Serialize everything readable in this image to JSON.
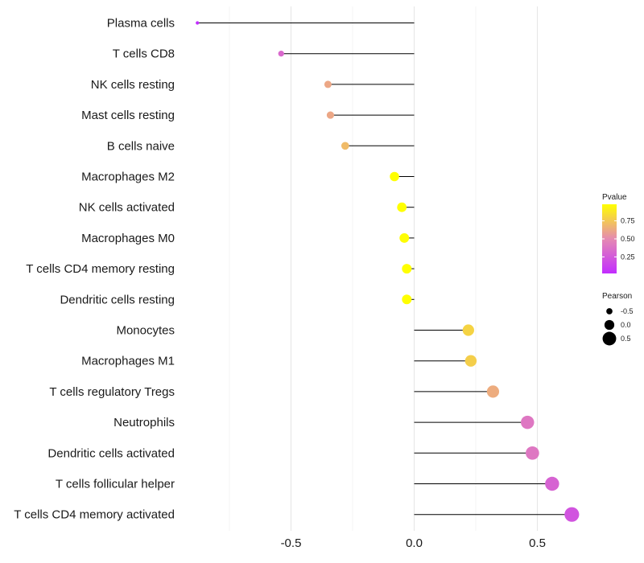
{
  "chart_data": {
    "type": "lollipop",
    "title": "",
    "xlabel": "",
    "ylabel": "",
    "xlim": [
      -0.95,
      0.72
    ],
    "x_ticks": [
      -0.5,
      0.0,
      0.5
    ],
    "x_tick_labels": [
      "-0.5",
      "0.0",
      "0.5"
    ],
    "grid": true,
    "legend_position": "right",
    "points": [
      {
        "label": "Plasma cells",
        "pearson": -0.88,
        "pvalue": 0.02
      },
      {
        "label": "T cells CD8",
        "pearson": -0.54,
        "pvalue": 0.33
      },
      {
        "label": "NK cells resting",
        "pearson": -0.35,
        "pvalue": 0.62
      },
      {
        "label": "Mast cells resting",
        "pearson": -0.34,
        "pvalue": 0.62
      },
      {
        "label": "B cells naive",
        "pearson": -0.28,
        "pvalue": 0.7
      },
      {
        "label": "Macrophages M2",
        "pearson": -0.08,
        "pvalue": 0.98
      },
      {
        "label": "NK cells activated",
        "pearson": -0.05,
        "pvalue": 0.98
      },
      {
        "label": "Macrophages M0",
        "pearson": -0.04,
        "pvalue": 0.97
      },
      {
        "label": "T cells CD4 memory resting",
        "pearson": -0.03,
        "pvalue": 0.98
      },
      {
        "label": "Dendritic cells resting",
        "pearson": -0.03,
        "pvalue": 0.98
      },
      {
        "label": "Monocytes",
        "pearson": 0.22,
        "pvalue": 0.8
      },
      {
        "label": "Macrophages M1",
        "pearson": 0.23,
        "pvalue": 0.78
      },
      {
        "label": "T cells regulatory  Tregs ",
        "pearson": 0.32,
        "pvalue": 0.64
      },
      {
        "label": "Neutrophils",
        "pearson": 0.46,
        "pvalue": 0.4
      },
      {
        "label": "Dendritic cells activated",
        "pearson": 0.48,
        "pvalue": 0.4
      },
      {
        "label": "T cells follicular helper",
        "pearson": 0.56,
        "pvalue": 0.3
      },
      {
        "label": "T cells CD4 memory activated",
        "pearson": 0.64,
        "pvalue": 0.22
      }
    ],
    "color_legend": {
      "title": "Pvalue",
      "ticks": [
        0.75,
        0.5,
        0.25
      ],
      "tick_labels": [
        "0.75",
        "0.50",
        "0.25"
      ],
      "range": [
        0.02,
        0.98
      ],
      "low_color": "#c22dff",
      "mid_color": "#e58ab2",
      "high_color": "#ffff00"
    },
    "size_legend": {
      "title": "Pearson",
      "values": [
        -0.5,
        0.0,
        0.5
      ],
      "labels": [
        "-0.5",
        "0.0",
        "0.5"
      ]
    }
  }
}
